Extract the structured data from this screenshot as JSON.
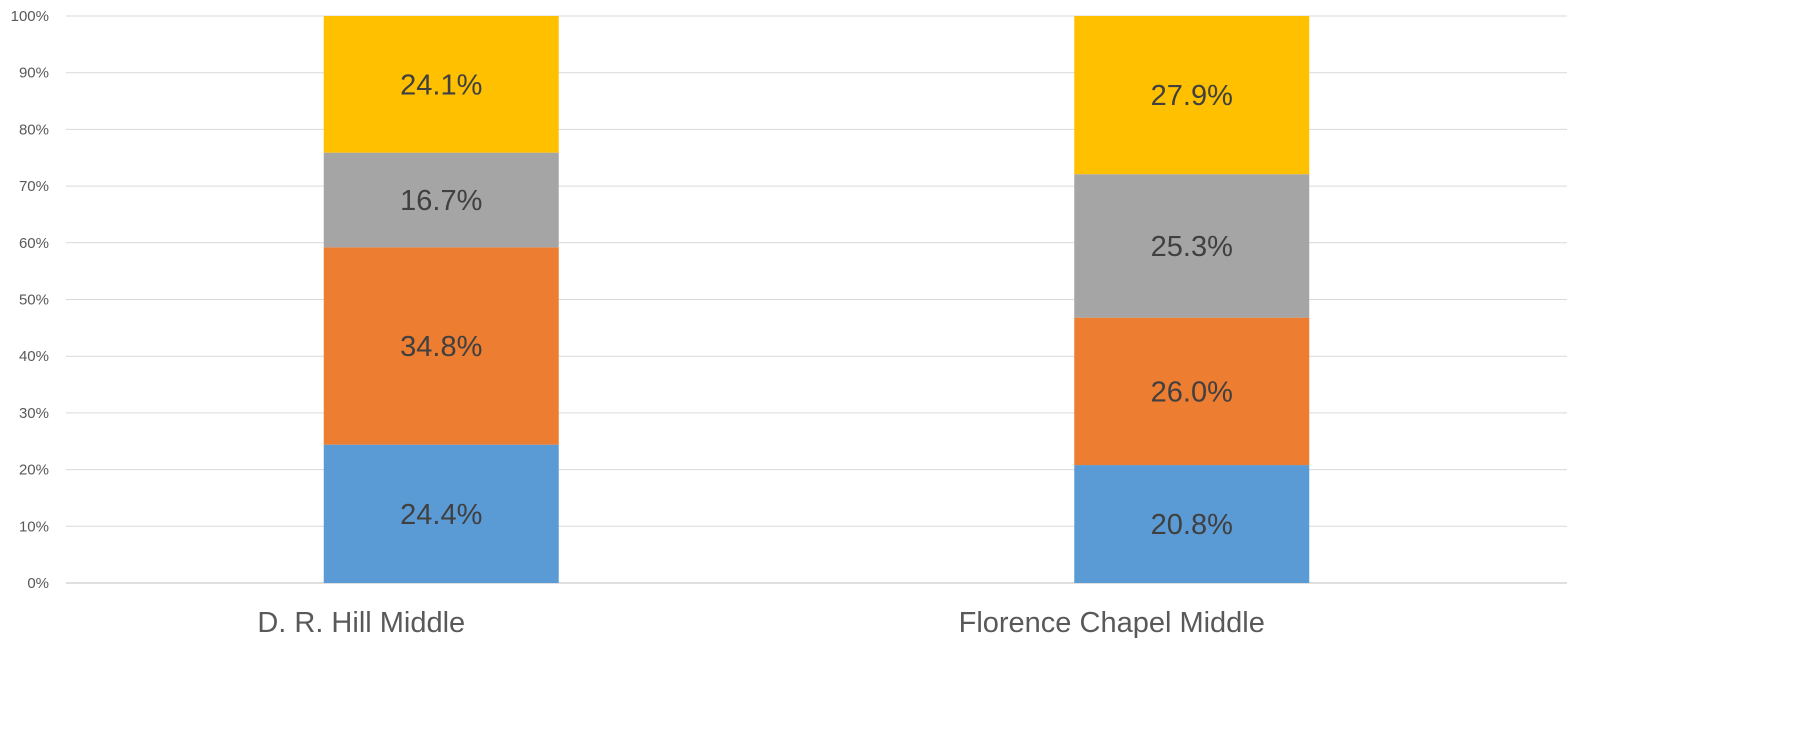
{
  "chart_data": {
    "type": "bar",
    "stacked": true,
    "percent_stacked": true,
    "title": "",
    "xlabel": "",
    "ylabel": "",
    "ylim": [
      0,
      100
    ],
    "yticks": [
      "0%",
      "10%",
      "20%",
      "30%",
      "40%",
      "50%",
      "60%",
      "70%",
      "80%",
      "90%",
      "100%"
    ],
    "grid": true,
    "legend": "none",
    "categories": [
      "D. R. Hill Middle",
      "Florence Chapel Middle"
    ],
    "series": [
      {
        "color": "#5B9BD5",
        "values": [
          24.4,
          20.8
        ],
        "labels": [
          "24.4%",
          "20.8%"
        ]
      },
      {
        "color": "#ED7D31",
        "values": [
          34.8,
          26.0
        ],
        "labels": [
          "34.8%",
          "26.0%"
        ]
      },
      {
        "color": "#A5A5A5",
        "values": [
          16.7,
          25.3
        ],
        "labels": [
          "16.7%",
          "25.3%"
        ]
      },
      {
        "color": "#FFC000",
        "values": [
          24.1,
          27.9
        ],
        "labels": [
          "24.1%",
          "27.9%"
        ]
      }
    ]
  }
}
